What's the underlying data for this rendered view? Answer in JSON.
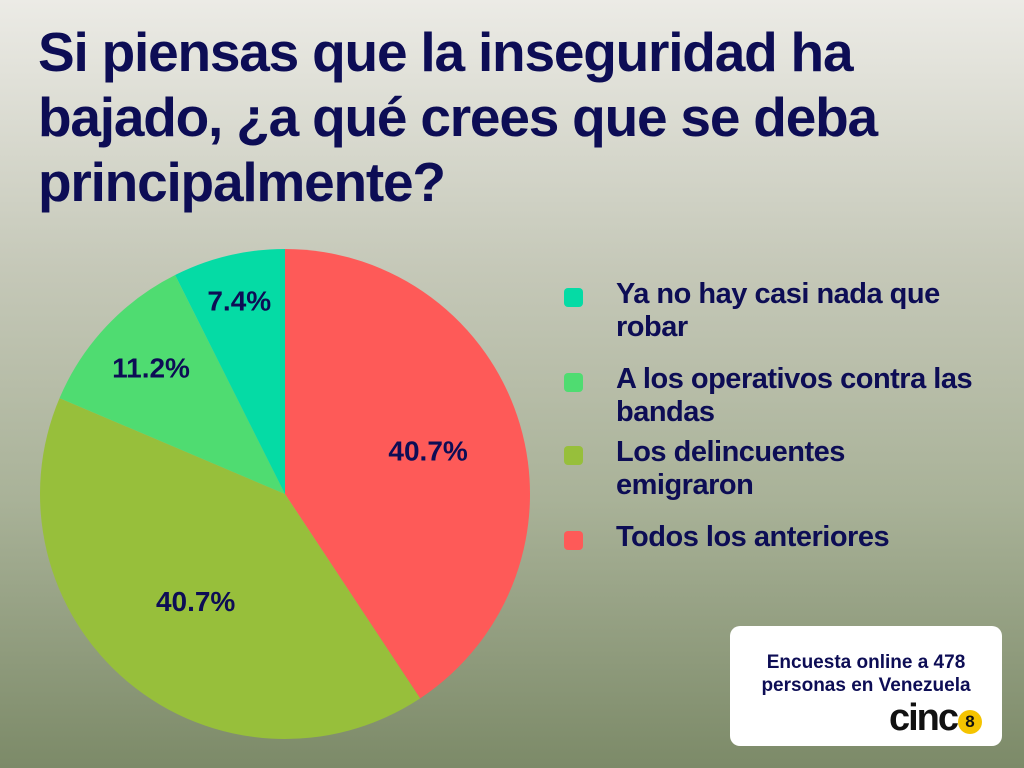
{
  "title": "Si piensas que la inseguridad ha bajado, ¿a qué crees que se deba principalmente?",
  "chart_data": {
    "type": "pie",
    "title": "Si piensas que la inseguridad ha bajado, ¿a qué crees que se deba principalmente?",
    "slices": [
      {
        "label": "Todos los anteriores",
        "value": 40.7,
        "display": "40.7%",
        "color": "#fe5a58"
      },
      {
        "label": "Los delincuentes emigraron",
        "value": 40.7,
        "display": "40.7%",
        "color": "#97bf3b"
      },
      {
        "label": "A los operativos contra las bandas",
        "value": 11.2,
        "display": "11.2%",
        "color": "#4fdc71"
      },
      {
        "label": "Ya no hay casi nada que robar",
        "value": 7.4,
        "display": "7.4%",
        "color": "#05dba5"
      }
    ],
    "legend_order": [
      3,
      2,
      1,
      0
    ],
    "legend_position": "right"
  },
  "source": {
    "line1": "Encuesta online a 478",
    "line2": "personas en Venezuela"
  },
  "brand": {
    "word": "cinc",
    "badge": "8",
    "badge_color": "#f5c400"
  },
  "colors": {
    "text": "#0d0d55"
  }
}
